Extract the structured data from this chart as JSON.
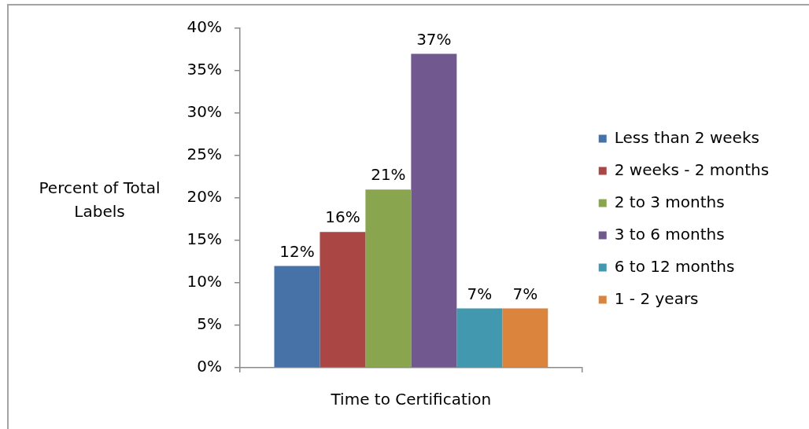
{
  "chart_data": {
    "type": "bar",
    "xlabel": "Time to Certification",
    "ylabel": "Percent of Total Labels",
    "categories": [
      null
    ],
    "series": [
      {
        "name": "Less than 2 weeks",
        "color": "#4672a8",
        "values": [
          12
        ],
        "value_labels": [
          "12%"
        ]
      },
      {
        "name": "2 weeks - 2 months",
        "color": "#aa4643",
        "values": [
          16
        ],
        "value_labels": [
          "16%"
        ]
      },
      {
        "name": "2 to 3 months",
        "color": "#89a54e",
        "values": [
          21
        ],
        "value_labels": [
          "21%"
        ]
      },
      {
        "name": "3 to 6 months",
        "color": "#71588f",
        "values": [
          37
        ],
        "value_labels": [
          "37%"
        ]
      },
      {
        "name": "6 to 12 months",
        "color": "#4198af",
        "values": [
          7
        ],
        "value_labels": [
          "7%"
        ]
      },
      {
        "name": "1 - 2 years",
        "color": "#db843d",
        "values": [
          7
        ],
        "value_labels": [
          "7%"
        ]
      }
    ],
    "ylim": [
      0,
      40
    ],
    "yticks": [
      {
        "value": 0,
        "label": "0%"
      },
      {
        "value": 5,
        "label": "5%"
      },
      {
        "value": 10,
        "label": "10%"
      },
      {
        "value": 15,
        "label": "15%"
      },
      {
        "value": 20,
        "label": "20%"
      },
      {
        "value": 25,
        "label": "25%"
      },
      {
        "value": 30,
        "label": "30%"
      },
      {
        "value": 35,
        "label": "35%"
      },
      {
        "value": 40,
        "label": "40%"
      }
    ],
    "legend": "right"
  }
}
